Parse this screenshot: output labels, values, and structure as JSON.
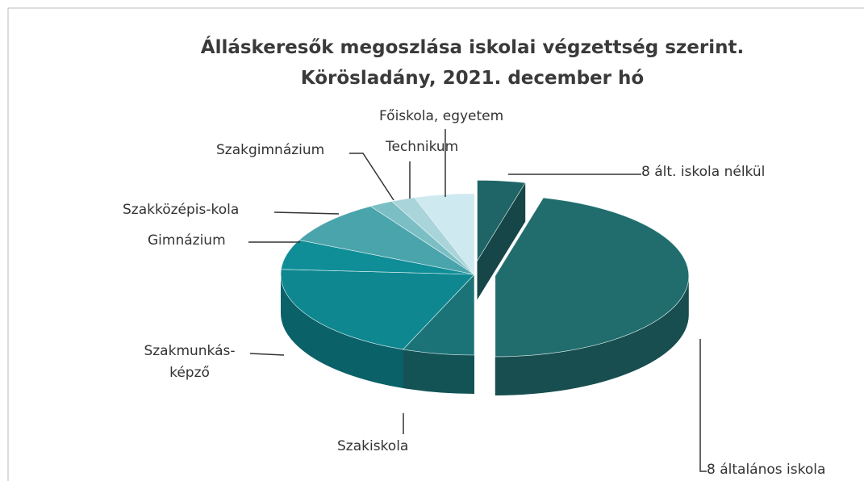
{
  "chart_data": {
    "type": "pie3d",
    "title": "Álláskeresők megoszlása iskolai végzettség szerint.",
    "subtitle": "Körösladány, 2021. december hó",
    "categories": [
      "8 ált. iskola nélkül",
      "8 általános iskola",
      "Szakiskola",
      "Szakmunkás-\nképző",
      "Gimnázium",
      "Szakközépis-kola",
      "Szakgimnázium",
      "Technikum",
      "Főiskola, egyetem"
    ],
    "values": [
      4,
      46,
      6,
      20,
      6,
      9,
      2,
      2,
      5
    ],
    "colors": [
      "#1f6466",
      "#216d6e",
      "#1b7378",
      "#0e8791",
      "#0f8e98",
      "#4aa4ab",
      "#7bbfc5",
      "#a9d5da",
      "#cfe9f1"
    ]
  }
}
